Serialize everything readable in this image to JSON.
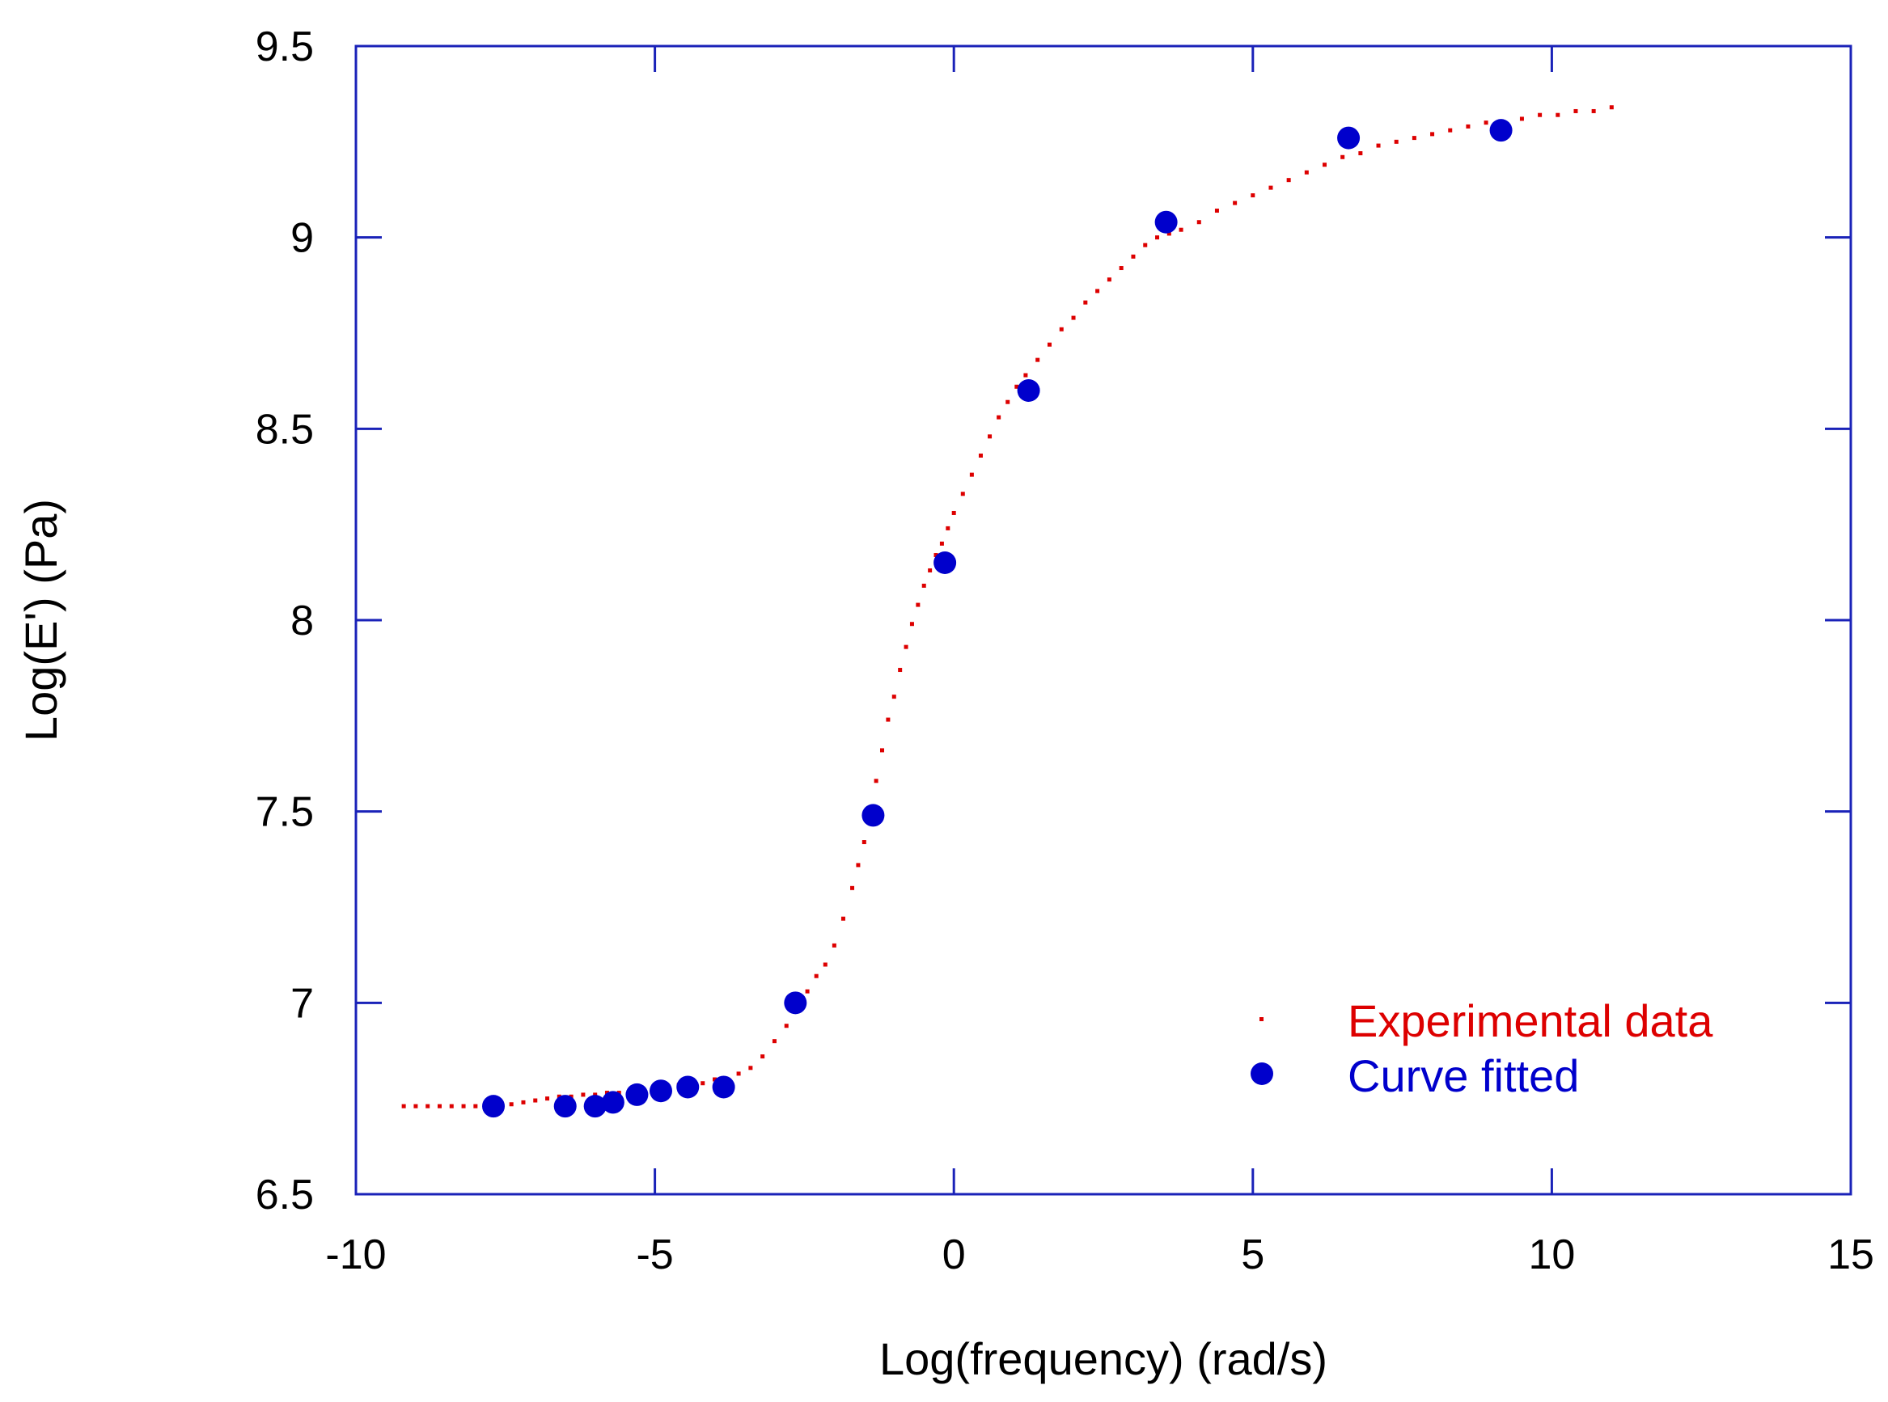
{
  "chart_data": {
    "type": "scatter",
    "title": "",
    "xlabel": "Log(frequency) (rad/s)",
    "ylabel": "Log(E') (Pa)",
    "xlim": [
      -10,
      15
    ],
    "ylim": [
      6.5,
      9.5
    ],
    "xticks": [
      -10,
      -5,
      0,
      5,
      10,
      15
    ],
    "xtick_labels": [
      "-10",
      "-5",
      "0",
      "5",
      "10",
      "15"
    ],
    "yticks": [
      6.5,
      7,
      7.5,
      8,
      8.5,
      9,
      9.5
    ],
    "ytick_labels": [
      "6.5",
      "7",
      "7.5",
      "8",
      "8.5",
      "9",
      "9.5"
    ],
    "grid": false,
    "legend_position": "bottom-right",
    "series": [
      {
        "name": "Experimental data",
        "marker": "small-dot",
        "color": "#dd0000",
        "x": [
          -9.2,
          -9.0,
          -8.8,
          -8.6,
          -8.4,
          -8.2,
          -8.0,
          -7.8,
          -7.6,
          -7.4,
          -7.2,
          -7.0,
          -6.8,
          -6.6,
          -6.4,
          -6.2,
          -6.0,
          -5.8,
          -5.6,
          -5.4,
          -5.2,
          -5.0,
          -4.8,
          -4.6,
          -4.4,
          -4.2,
          -4.0,
          -3.8,
          -3.6,
          -3.4,
          -3.2,
          -3.0,
          -2.8,
          -2.6,
          -2.45,
          -2.3,
          -2.15,
          -2.0,
          -1.85,
          -1.7,
          -1.6,
          -1.5,
          -1.4,
          -1.3,
          -1.2,
          -1.1,
          -1.0,
          -0.9,
          -0.8,
          -0.7,
          -0.6,
          -0.5,
          -0.4,
          -0.3,
          -0.2,
          -0.1,
          0.0,
          0.15,
          0.3,
          0.45,
          0.6,
          0.75,
          0.9,
          1.05,
          1.2,
          1.4,
          1.6,
          1.8,
          2.0,
          2.2,
          2.4,
          2.6,
          2.8,
          3.0,
          3.2,
          3.4,
          3.6,
          3.8,
          4.1,
          4.4,
          4.7,
          5.0,
          5.3,
          5.6,
          5.9,
          6.2,
          6.5,
          6.8,
          7.1,
          7.4,
          7.7,
          8.0,
          8.3,
          8.6,
          8.9,
          9.2,
          9.5,
          9.8,
          10.1,
          10.4,
          10.7,
          11.0
        ],
        "y": [
          6.73,
          6.73,
          6.73,
          6.73,
          6.73,
          6.73,
          6.73,
          6.73,
          6.73,
          6.735,
          6.74,
          6.745,
          6.75,
          6.755,
          6.755,
          6.76,
          6.76,
          6.765,
          6.765,
          6.77,
          6.77,
          6.775,
          6.78,
          6.785,
          6.785,
          6.79,
          6.8,
          6.8,
          6.815,
          6.83,
          6.86,
          6.9,
          6.94,
          6.99,
          7.03,
          7.07,
          7.1,
          7.15,
          7.22,
          7.3,
          7.36,
          7.42,
          7.5,
          7.58,
          7.66,
          7.74,
          7.8,
          7.87,
          7.93,
          7.99,
          8.04,
          8.09,
          8.13,
          8.17,
          8.2,
          8.24,
          8.28,
          8.33,
          8.38,
          8.43,
          8.48,
          8.53,
          8.57,
          8.61,
          8.64,
          8.68,
          8.72,
          8.76,
          8.79,
          8.83,
          8.86,
          8.89,
          8.92,
          8.95,
          8.98,
          9.0,
          9.01,
          9.02,
          9.04,
          9.07,
          9.09,
          9.11,
          9.13,
          9.15,
          9.17,
          9.19,
          9.21,
          9.22,
          9.24,
          9.25,
          9.26,
          9.27,
          9.28,
          9.29,
          9.3,
          9.3,
          9.31,
          9.32,
          9.32,
          9.33,
          9.33,
          9.34
        ]
      },
      {
        "name": "Curve fitted",
        "marker": "filled-circle",
        "color": "#0000cc",
        "x": [
          -7.7,
          -6.5,
          -6.0,
          -5.7,
          -5.3,
          -4.9,
          -4.45,
          -3.85,
          -2.65,
          -1.35,
          -0.15,
          1.25,
          3.55,
          6.6,
          9.15
        ],
        "y": [
          6.73,
          6.73,
          6.73,
          6.74,
          6.76,
          6.77,
          6.78,
          6.78,
          7.0,
          7.49,
          8.15,
          8.6,
          9.04,
          9.26,
          9.28
        ]
      }
    ]
  },
  "colors": {
    "axis": "#1a22b8",
    "experimental": "#dd0000",
    "fitted": "#0000cc"
  }
}
